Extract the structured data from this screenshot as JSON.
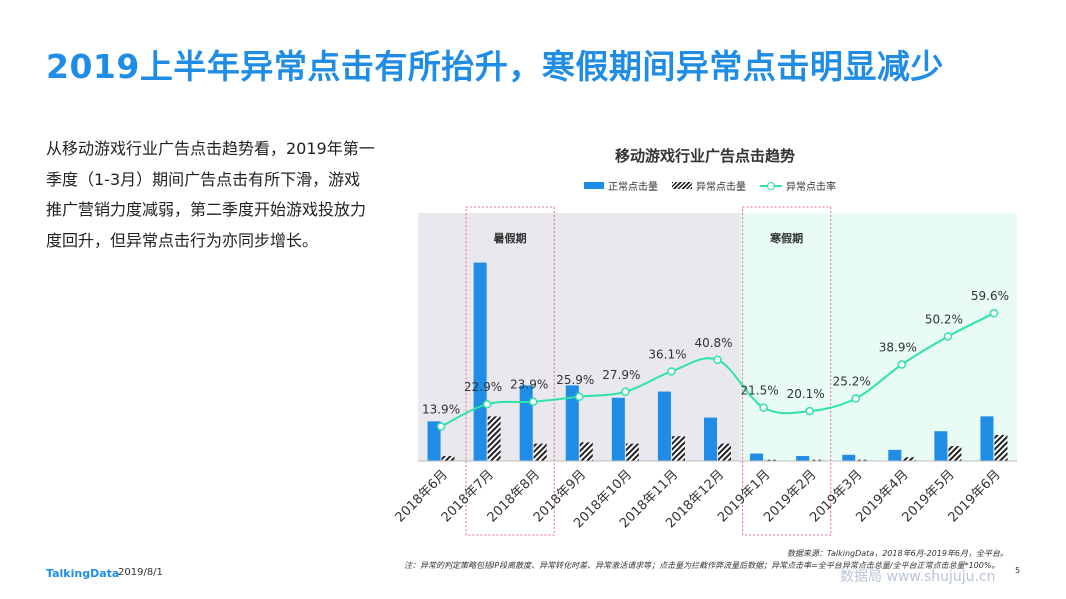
{
  "slide": {
    "title": "2019上半年异常点击有所抬升，寒假期间异常点击明显减少",
    "description": "从移动游戏行业广告点击趋势看，2019年第一季度（1-3月）期间广告点击有所下滑，游戏推广营销力度减弱，第二季度开始游戏投放力度回升，但异常点击行为亦同步增长。",
    "source": "数据来源：TalkingData，2018年6月-2019年6月，全平台。",
    "note": "注：异常的判定策略包括IP段离散度、异常转化时差、异常激活请求等；点击量为拦截作弊流量后数据；异常点击率=全平台异常点击总量/全平台正常点击总量*100%。",
    "brand": "TalkingData",
    "date": "2019/8/1",
    "page_number": "5",
    "watermark": "数据局 www.shujuju.cn"
  },
  "chart_data": {
    "type": "bar",
    "title": "移动游戏行业广告点击趋势",
    "categories": [
      "2018年6月",
      "2018年7月",
      "2018年8月",
      "2018年9月",
      "2018年10月",
      "2018年11月",
      "2018年12月",
      "2019年1月",
      "2019年2月",
      "2019年3月",
      "2019年4月",
      "2019年5月",
      "2019年6月"
    ],
    "series": [
      {
        "name": "正常点击量",
        "kind": "bar",
        "color": "#1f8ce6",
        "values": [
          32,
          160,
          61,
          61,
          51,
          56,
          35,
          6,
          4,
          5,
          9,
          24,
          36
        ]
      },
      {
        "name": "异常点击量",
        "kind": "hatched-bar",
        "color": "#222222",
        "values": [
          4,
          36,
          14,
          15,
          14,
          20,
          14,
          1,
          1,
          1,
          3,
          12,
          21
        ]
      },
      {
        "name": "异常点击率",
        "kind": "line",
        "color": "#2fe3a6",
        "values": [
          13.9,
          22.9,
          23.9,
          25.9,
          27.9,
          36.1,
          40.8,
          21.5,
          20.1,
          25.2,
          38.9,
          50.2,
          59.6
        ]
      }
    ],
    "point_labels": [
      "13.9%",
      "22.9%",
      "23.9%",
      "25.9%",
      "27.9%",
      "36.1%",
      "40.8%",
      "21.5%",
      "20.1%",
      "25.2%",
      "38.9%",
      "50.2%",
      "59.6%"
    ],
    "bar_ylim": [
      0,
      200
    ],
    "rate_ylim": [
      0,
      100
    ],
    "periods": [
      {
        "label": "暑假期",
        "from": "2018年7月",
        "to": "2018年8月"
      },
      {
        "label": "寒假期",
        "from": "2019年1月",
        "to": "2019年2月"
      }
    ],
    "legend": "top-center",
    "grid": false
  }
}
